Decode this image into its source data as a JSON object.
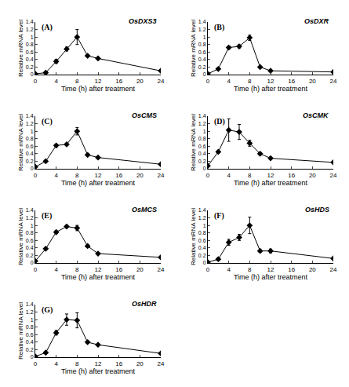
{
  "chart_data": [
    {
      "type": "line",
      "title": "OsDXS3",
      "annotations": [
        "(A)"
      ],
      "x_label": "Time (h) after treatment",
      "y_label": "Relative mRNA level",
      "x": [
        0,
        2,
        4,
        6,
        8,
        10,
        12,
        24
      ],
      "values": [
        0.02,
        0.05,
        0.35,
        0.68,
        1.0,
        0.5,
        0.43,
        0.1
      ],
      "errors": [
        0.01,
        0.02,
        0.05,
        0.05,
        0.2,
        0.03,
        0.03,
        0.02
      ],
      "xlim": [
        0,
        24
      ],
      "xticks": [
        0,
        4,
        8,
        12,
        16,
        20,
        24
      ],
      "ylim": [
        0,
        1.4
      ],
      "yticks": [
        0,
        0.2,
        0.4,
        0.6,
        0.8,
        1,
        1.2,
        1.4
      ],
      "color": "#000000",
      "marker": "diamond"
    },
    {
      "type": "line",
      "title": "OsDXR",
      "annotations": [
        "(B)"
      ],
      "x_label": "Time (h) after treatment",
      "y_label": "Relative mRNA level",
      "x": [
        0,
        2,
        4,
        6,
        8,
        10,
        12,
        24
      ],
      "values": [
        0.02,
        0.15,
        0.72,
        0.75,
        0.98,
        0.2,
        0.1,
        0.07
      ],
      "errors": [
        0.01,
        0.02,
        0.04,
        0.04,
        0.07,
        0.02,
        0.01,
        0.01
      ],
      "xlim": [
        0,
        24
      ],
      "xticks": [
        0,
        4,
        8,
        12,
        16,
        20,
        24
      ],
      "ylim": [
        0,
        1.4
      ],
      "yticks": [
        0,
        0.2,
        0.4,
        0.6,
        0.8,
        1,
        1.2,
        1.4
      ],
      "color": "#000000",
      "marker": "diamond"
    },
    {
      "type": "line",
      "title": "OsCMS",
      "annotations": [
        "(C)"
      ],
      "x_label": "Time (h) after treatment",
      "y_label": "Relative mRNA level",
      "x": [
        0,
        2,
        4,
        6,
        8,
        10,
        12,
        24
      ],
      "values": [
        0.05,
        0.2,
        0.62,
        0.65,
        1.0,
        0.37,
        0.3,
        0.12
      ],
      "errors": [
        0.01,
        0.02,
        0.03,
        0.03,
        0.1,
        0.03,
        0.02,
        0.01
      ],
      "xlim": [
        0,
        24
      ],
      "xticks": [
        0,
        4,
        8,
        12,
        16,
        20,
        24
      ],
      "ylim": [
        0,
        1.4
      ],
      "yticks": [
        0,
        0.2,
        0.4,
        0.6,
        0.8,
        1,
        1.2,
        1.4
      ],
      "color": "#000000",
      "marker": "diamond"
    },
    {
      "type": "line",
      "title": "OsCMK",
      "annotations": [
        "(D)"
      ],
      "x_label": "Time (h) after treatment",
      "y_label": "Relative mRNA level",
      "x": [
        0,
        2,
        4,
        6,
        8,
        10,
        12,
        24
      ],
      "values": [
        0.08,
        0.45,
        1.03,
        0.98,
        0.68,
        0.4,
        0.28,
        0.17
      ],
      "errors": [
        0.01,
        0.03,
        0.3,
        0.2,
        0.08,
        0.03,
        0.02,
        0.01
      ],
      "xlim": [
        0,
        24
      ],
      "xticks": [
        0,
        4,
        8,
        12,
        16,
        20,
        24
      ],
      "ylim": [
        0,
        1.4
      ],
      "yticks": [
        0,
        0.2,
        0.4,
        0.6,
        0.8,
        1,
        1.2,
        1.4
      ],
      "color": "#000000",
      "marker": "diamond"
    },
    {
      "type": "line",
      "title": "OsMCS",
      "annotations": [
        "(E)"
      ],
      "x_label": "Time (h) after treatment",
      "y_label": "Relative mRNA level",
      "x": [
        0,
        2,
        4,
        6,
        8,
        10,
        12,
        24
      ],
      "values": [
        0.05,
        0.38,
        0.82,
        0.97,
        0.93,
        0.45,
        0.25,
        0.15
      ],
      "errors": [
        0.01,
        0.02,
        0.04,
        0.03,
        0.07,
        0.03,
        0.02,
        0.01
      ],
      "xlim": [
        0,
        24
      ],
      "xticks": [
        0,
        4,
        8,
        12,
        16,
        20,
        24
      ],
      "ylim": [
        0,
        1.4
      ],
      "yticks": [
        0,
        0.2,
        0.4,
        0.6,
        0.8,
        1,
        1.2,
        1.4
      ],
      "color": "#000000",
      "marker": "diamond"
    },
    {
      "type": "line",
      "title": "OsHDS",
      "annotations": [
        "(F)"
      ],
      "x_label": "Time (h) after treatment",
      "y_label": "Relative mRNA level",
      "x": [
        0,
        2,
        4,
        6,
        8,
        10,
        12,
        24
      ],
      "values": [
        0.02,
        0.1,
        0.55,
        0.68,
        1.0,
        0.32,
        0.32,
        0.12
      ],
      "errors": [
        0.01,
        0.03,
        0.08,
        0.08,
        0.22,
        0.03,
        0.05,
        0.02
      ],
      "xlim": [
        0,
        24
      ],
      "xticks": [
        0,
        4,
        8,
        12,
        16,
        20,
        24
      ],
      "ylim": [
        0,
        1.4
      ],
      "yticks": [
        0,
        0.2,
        0.4,
        0.6,
        0.8,
        1,
        1.2,
        1.4
      ],
      "color": "#000000",
      "marker": "diamond"
    },
    {
      "type": "line",
      "title": "OsHDR",
      "annotations": [
        "(G)"
      ],
      "x_label": "Time (h) after treatment",
      "y_label": "Relative mRNA level",
      "x": [
        0,
        2,
        4,
        6,
        8,
        10,
        12,
        24
      ],
      "values": [
        0.02,
        0.12,
        0.65,
        1.0,
        0.98,
        0.4,
        0.33,
        0.1
      ],
      "errors": [
        0.01,
        0.02,
        0.06,
        0.15,
        0.2,
        0.03,
        0.02,
        0.01
      ],
      "xlim": [
        0,
        24
      ],
      "xticks": [
        0,
        4,
        8,
        12,
        16,
        20,
        24
      ],
      "ylim": [
        0,
        1.4
      ],
      "yticks": [
        0,
        0.2,
        0.4,
        0.6,
        0.8,
        1,
        1.2,
        1.4
      ],
      "color": "#000000",
      "marker": "diamond"
    }
  ]
}
